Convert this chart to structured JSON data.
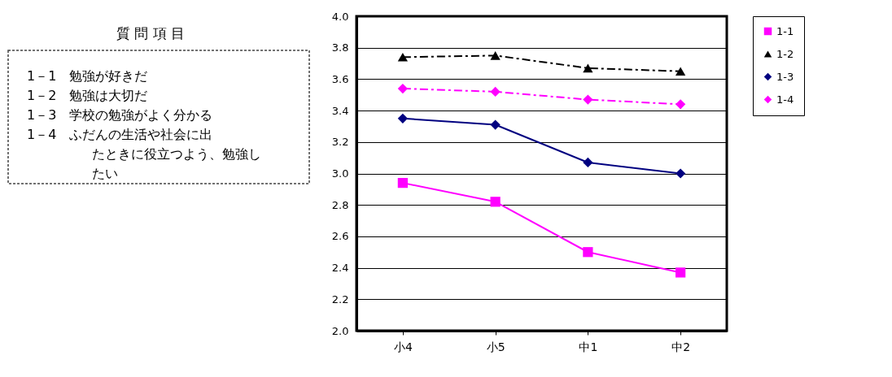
{
  "chart_data": {
    "type": "line",
    "categories": [
      "小4",
      "小5",
      "中1",
      "中2"
    ],
    "series": [
      {
        "name": "1-1",
        "color": "#ff00ff",
        "marker": "square",
        "line_style": "solid",
        "values": [
          2.94,
          2.82,
          2.5,
          2.37
        ]
      },
      {
        "name": "1-2",
        "color": "#000000",
        "marker": "triangle",
        "line_style": "dashed",
        "values": [
          3.74,
          3.75,
          3.67,
          3.65
        ]
      },
      {
        "name": "1-3",
        "color": "#000080",
        "marker": "diamond",
        "line_style": "solid",
        "values": [
          3.35,
          3.31,
          3.07,
          3.0
        ]
      },
      {
        "name": "1-4",
        "color": "#ff00ff",
        "marker": "diamond",
        "line_style": "dashed",
        "values": [
          3.54,
          3.52,
          3.47,
          3.44
        ]
      }
    ],
    "ylim": [
      2.0,
      4.0
    ],
    "yticks": [
      {
        "value": 2.0,
        "label": "2.0"
      },
      {
        "value": 2.2,
        "label": "2.2"
      },
      {
        "value": 2.4,
        "label": "2.4"
      },
      {
        "value": 2.6,
        "label": "2.6"
      },
      {
        "value": 2.8,
        "label": "2.8"
      },
      {
        "value": 3.0,
        "label": "3.0"
      },
      {
        "value": 3.2,
        "label": "3.2"
      },
      {
        "value": 3.4,
        "label": "3.4"
      },
      {
        "value": 3.6,
        "label": "3.6"
      },
      {
        "value": 3.8,
        "label": "3.8"
      },
      {
        "value": 4.0,
        "label": "4.0"
      }
    ],
    "grid": "y",
    "legend": "right",
    "annotations": [
      "質 問 項 目",
      "1－1　勉強が好きだ",
      "1－2　勉強は大切だ",
      "1－3　学校の勉強がよく分かる",
      "1－4　ふだんの生活や社会に出たときに役立つよう、勉強したい"
    ]
  }
}
